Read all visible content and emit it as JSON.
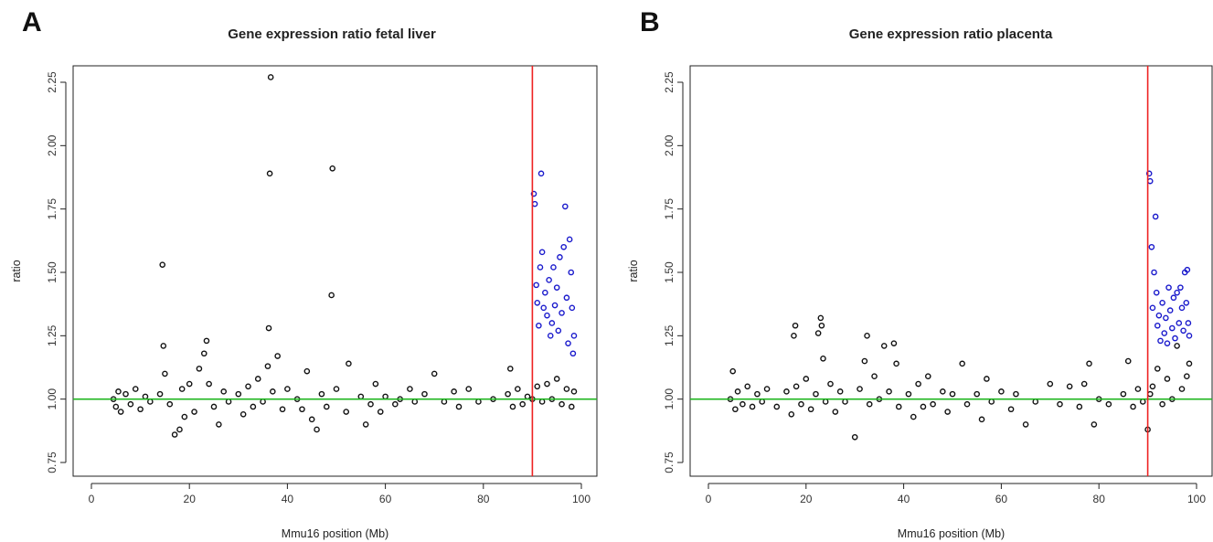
{
  "chart_data": [
    {
      "type": "scatter",
      "panel_label": "A",
      "title": "Gene expression ratio fetal liver",
      "xlabel": "Mmu16 position (Mb)",
      "ylabel": "ratio",
      "xlim": [
        0,
        100
      ],
      "ylim": [
        0.75,
        2.25
      ],
      "xticks": [
        0,
        20,
        40,
        60,
        80,
        100
      ],
      "yticks": [
        0.75,
        1.0,
        1.25,
        1.5,
        1.75,
        2.0,
        2.25
      ],
      "ytick_labels": [
        "0.75",
        "1.00",
        "1.25",
        "1.50",
        "1.75",
        "2.00",
        "2.25"
      ],
      "reference_lines": {
        "horizontal_y": 1.0,
        "horizontal_color": "#1fb51f",
        "vertical_x": 90,
        "vertical_color": "#ee2222"
      },
      "series": [
        {
          "color": "#111111",
          "points": [
            [
              4.5,
              1.0
            ],
            [
              5,
              0.97
            ],
            [
              5.5,
              1.03
            ],
            [
              6,
              0.95
            ],
            [
              7,
              1.02
            ],
            [
              8,
              0.98
            ],
            [
              9,
              1.04
            ],
            [
              10,
              0.96
            ],
            [
              11,
              1.01
            ],
            [
              12,
              0.99
            ],
            [
              14,
              1.02
            ],
            [
              14.5,
              1.53
            ],
            [
              14.7,
              1.21
            ],
            [
              15,
              1.1
            ],
            [
              16,
              0.98
            ],
            [
              17,
              0.86
            ],
            [
              18,
              0.88
            ],
            [
              18.5,
              1.04
            ],
            [
              19,
              0.93
            ],
            [
              20,
              1.06
            ],
            [
              21,
              0.95
            ],
            [
              22,
              1.12
            ],
            [
              23,
              1.18
            ],
            [
              23.5,
              1.23
            ],
            [
              24,
              1.06
            ],
            [
              25,
              0.97
            ],
            [
              26,
              0.9
            ],
            [
              27,
              1.03
            ],
            [
              28,
              0.99
            ],
            [
              30,
              1.02
            ],
            [
              31,
              0.94
            ],
            [
              32,
              1.05
            ],
            [
              33,
              0.97
            ],
            [
              34,
              1.08
            ],
            [
              35,
              0.99
            ],
            [
              36,
              1.13
            ],
            [
              36.2,
              1.28
            ],
            [
              36.4,
              1.89
            ],
            [
              36.6,
              2.27
            ],
            [
              37,
              1.03
            ],
            [
              38,
              1.17
            ],
            [
              39,
              0.96
            ],
            [
              40,
              1.04
            ],
            [
              42,
              1.0
            ],
            [
              43,
              0.96
            ],
            [
              44,
              1.11
            ],
            [
              45,
              0.92
            ],
            [
              46,
              0.88
            ],
            [
              47,
              1.02
            ],
            [
              48,
              0.97
            ],
            [
              49,
              1.41
            ],
            [
              49.2,
              1.91
            ],
            [
              50,
              1.04
            ],
            [
              52,
              0.95
            ],
            [
              52.5,
              1.14
            ],
            [
              55,
              1.01
            ],
            [
              56,
              0.9
            ],
            [
              57,
              0.98
            ],
            [
              58,
              1.06
            ],
            [
              59,
              0.95
            ],
            [
              60,
              1.01
            ],
            [
              62,
              0.98
            ],
            [
              63,
              1.0
            ],
            [
              65,
              1.04
            ],
            [
              66,
              0.99
            ],
            [
              68,
              1.02
            ],
            [
              70,
              1.1
            ],
            [
              72,
              0.99
            ],
            [
              74,
              1.03
            ],
            [
              75,
              0.97
            ],
            [
              77,
              1.04
            ],
            [
              79,
              0.99
            ],
            [
              82,
              1.0
            ],
            [
              85,
              1.02
            ],
            [
              85.5,
              1.12
            ],
            [
              86,
              0.97
            ],
            [
              87,
              1.04
            ],
            [
              88,
              0.98
            ],
            [
              89,
              1.01
            ],
            [
              90,
              1.0
            ],
            [
              91,
              1.05
            ],
            [
              92,
              0.99
            ],
            [
              93,
              1.06
            ],
            [
              94,
              1.0
            ],
            [
              95,
              1.08
            ],
            [
              96,
              0.98
            ],
            [
              97,
              1.04
            ],
            [
              98,
              0.97
            ],
            [
              98.5,
              1.03
            ]
          ]
        },
        {
          "color": "#1a1acc",
          "points": [
            [
              90.3,
              1.81
            ],
            [
              90.5,
              1.77
            ],
            [
              90.8,
              1.45
            ],
            [
              91,
              1.38
            ],
            [
              91.3,
              1.29
            ],
            [
              91.6,
              1.52
            ],
            [
              91.8,
              1.89
            ],
            [
              92,
              1.58
            ],
            [
              92.3,
              1.36
            ],
            [
              92.6,
              1.42
            ],
            [
              93,
              1.33
            ],
            [
              93.4,
              1.47
            ],
            [
              93.7,
              1.25
            ],
            [
              94,
              1.3
            ],
            [
              94.3,
              1.52
            ],
            [
              94.6,
              1.37
            ],
            [
              95,
              1.44
            ],
            [
              95.3,
              1.27
            ],
            [
              95.6,
              1.56
            ],
            [
              96,
              1.34
            ],
            [
              96.4,
              1.6
            ],
            [
              96.7,
              1.76
            ],
            [
              97,
              1.4
            ],
            [
              97.3,
              1.22
            ],
            [
              97.6,
              1.63
            ],
            [
              97.9,
              1.5
            ],
            [
              98.1,
              1.36
            ],
            [
              98.3,
              1.18
            ],
            [
              98.5,
              1.25
            ]
          ]
        }
      ]
    },
    {
      "type": "scatter",
      "panel_label": "B",
      "title": "Gene expression ratio placenta",
      "xlabel": "Mmu16 position (Mb)",
      "ylabel": "ratio",
      "xlim": [
        0,
        100
      ],
      "ylim": [
        0.75,
        2.25
      ],
      "xticks": [
        0,
        20,
        40,
        60,
        80,
        100
      ],
      "yticks": [
        0.75,
        1.0,
        1.25,
        1.5,
        1.75,
        2.0,
        2.25
      ],
      "ytick_labels": [
        "0.75",
        "1.00",
        "1.25",
        "1.50",
        "1.75",
        "2.00",
        "2.25"
      ],
      "reference_lines": {
        "horizontal_y": 1.0,
        "horizontal_color": "#1fb51f",
        "vertical_x": 90,
        "vertical_color": "#ee2222"
      },
      "series": [
        {
          "color": "#111111",
          "points": [
            [
              4.5,
              1.0
            ],
            [
              5,
              1.11
            ],
            [
              5.5,
              0.96
            ],
            [
              6,
              1.03
            ],
            [
              7,
              0.98
            ],
            [
              8,
              1.05
            ],
            [
              9,
              0.97
            ],
            [
              10,
              1.02
            ],
            [
              11,
              0.99
            ],
            [
              12,
              1.04
            ],
            [
              14,
              0.97
            ],
            [
              16,
              1.03
            ],
            [
              17,
              0.94
            ],
            [
              17.5,
              1.25
            ],
            [
              17.8,
              1.29
            ],
            [
              18,
              1.05
            ],
            [
              19,
              0.98
            ],
            [
              20,
              1.08
            ],
            [
              21,
              0.96
            ],
            [
              22,
              1.02
            ],
            [
              22.5,
              1.26
            ],
            [
              23,
              1.32
            ],
            [
              23.2,
              1.29
            ],
            [
              23.5,
              1.16
            ],
            [
              24,
              0.99
            ],
            [
              25,
              1.06
            ],
            [
              26,
              0.95
            ],
            [
              27,
              1.03
            ],
            [
              28,
              0.99
            ],
            [
              30,
              0.85
            ],
            [
              31,
              1.04
            ],
            [
              32,
              1.15
            ],
            [
              32.5,
              1.25
            ],
            [
              33,
              0.98
            ],
            [
              34,
              1.09
            ],
            [
              35,
              1.0
            ],
            [
              36,
              1.21
            ],
            [
              37,
              1.03
            ],
            [
              38,
              1.22
            ],
            [
              38.5,
              1.14
            ],
            [
              39,
              0.97
            ],
            [
              41,
              1.02
            ],
            [
              42,
              0.93
            ],
            [
              43,
              1.06
            ],
            [
              44,
              0.97
            ],
            [
              45,
              1.09
            ],
            [
              46,
              0.98
            ],
            [
              48,
              1.03
            ],
            [
              49,
              0.95
            ],
            [
              50,
              1.02
            ],
            [
              52,
              1.14
            ],
            [
              53,
              0.98
            ],
            [
              55,
              1.02
            ],
            [
              56,
              0.92
            ],
            [
              57,
              1.08
            ],
            [
              58,
              0.99
            ],
            [
              60,
              1.03
            ],
            [
              62,
              0.96
            ],
            [
              63,
              1.02
            ],
            [
              65,
              0.9
            ],
            [
              67,
              0.99
            ],
            [
              70,
              1.06
            ],
            [
              72,
              0.98
            ],
            [
              74,
              1.05
            ],
            [
              76,
              0.97
            ],
            [
              77,
              1.06
            ],
            [
              78,
              1.14
            ],
            [
              79,
              0.9
            ],
            [
              80,
              1.0
            ],
            [
              82,
              0.98
            ],
            [
              85,
              1.02
            ],
            [
              86,
              1.15
            ],
            [
              87,
              0.97
            ],
            [
              88,
              1.04
            ],
            [
              89,
              0.99
            ],
            [
              90,
              0.88
            ],
            [
              90.5,
              1.02
            ],
            [
              91,
              1.05
            ],
            [
              92,
              1.12
            ],
            [
              93,
              0.98
            ],
            [
              94,
              1.08
            ],
            [
              95,
              1.0
            ],
            [
              96,
              1.21
            ],
            [
              97,
              1.04
            ],
            [
              98,
              1.09
            ],
            [
              98.5,
              1.14
            ]
          ]
        },
        {
          "color": "#1a1acc",
          "points": [
            [
              90.3,
              1.89
            ],
            [
              90.5,
              1.86
            ],
            [
              90.8,
              1.6
            ],
            [
              91,
              1.36
            ],
            [
              91.3,
              1.5
            ],
            [
              91.6,
              1.72
            ],
            [
              91.8,
              1.42
            ],
            [
              92,
              1.29
            ],
            [
              92.3,
              1.33
            ],
            [
              92.6,
              1.23
            ],
            [
              93,
              1.38
            ],
            [
              93.4,
              1.26
            ],
            [
              93.7,
              1.32
            ],
            [
              94,
              1.22
            ],
            [
              94.3,
              1.44
            ],
            [
              94.6,
              1.35
            ],
            [
              95,
              1.28
            ],
            [
              95.3,
              1.4
            ],
            [
              95.6,
              1.24
            ],
            [
              96,
              1.42
            ],
            [
              96.4,
              1.3
            ],
            [
              96.7,
              1.44
            ],
            [
              97,
              1.36
            ],
            [
              97.3,
              1.27
            ],
            [
              97.6,
              1.5
            ],
            [
              97.9,
              1.38
            ],
            [
              98.1,
              1.51
            ],
            [
              98.3,
              1.3
            ],
            [
              98.5,
              1.25
            ]
          ]
        }
      ]
    }
  ]
}
